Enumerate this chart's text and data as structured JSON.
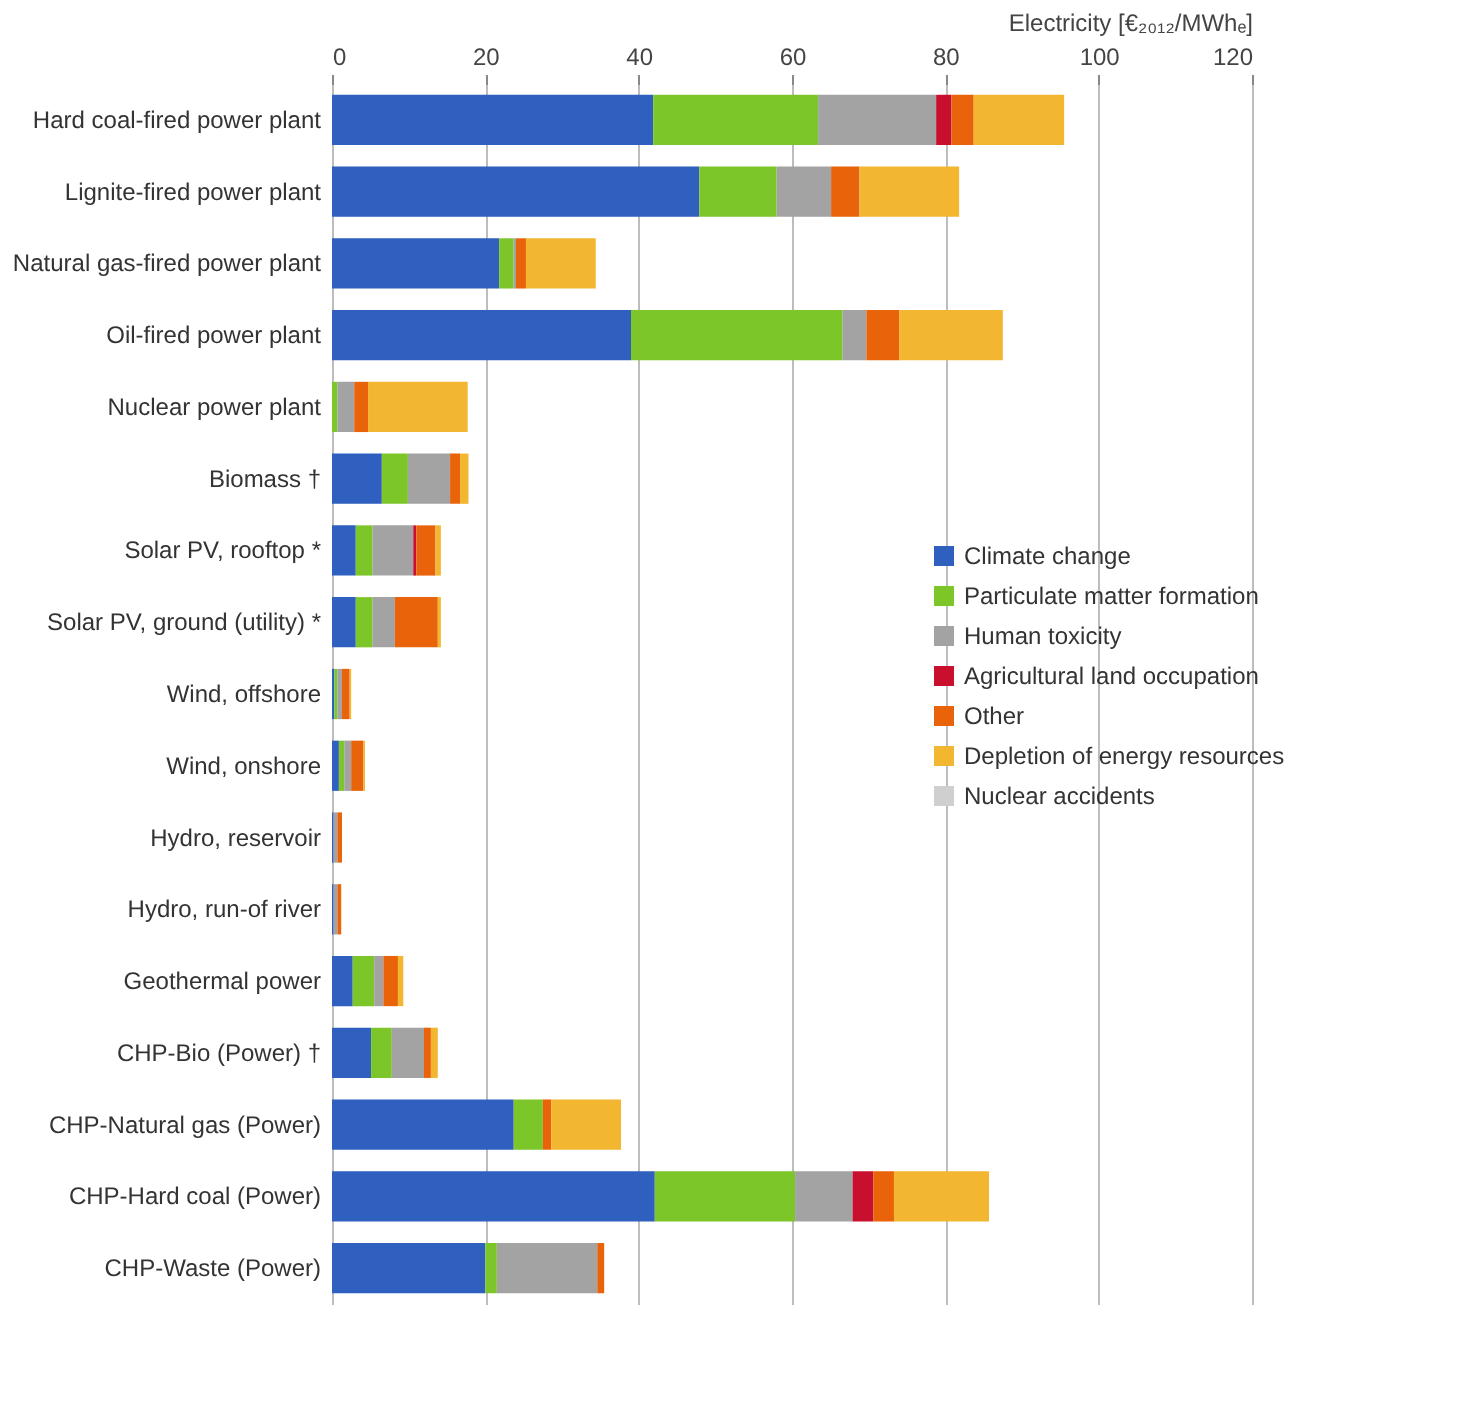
{
  "chart_data": {
    "type": "bar",
    "orientation": "horizontal",
    "stacked": true,
    "xlabel": "Electricity [€₂₀₁₂/MWhₑ]",
    "categories": [
      "Hard coal-fired power plant",
      "Lignite-fired power plant",
      "Natural gas-fired power plant",
      "Oil-fired power plant",
      "Nuclear power plant",
      "Biomass †",
      "Solar PV, rooftop *",
      "Solar PV, ground (utility) *",
      "Wind, offshore",
      "Wind, onshore",
      "Hydro, reservoir",
      "Hydro, run-of river",
      "Geothermal power",
      "CHP-Bio (Power) †",
      "CHP-Natural gas (Power)",
      "CHP-Hard coal (Power)",
      "CHP-Waste (Power)"
    ],
    "series": [
      {
        "name": "Climate change",
        "color": "#2f5fbf",
        "values": [
          41.9,
          47.9,
          21.8,
          39.0,
          null,
          6.5,
          3.1,
          3.1,
          0.3,
          0.9,
          0.2,
          0.2,
          2.7,
          5.1,
          23.7,
          42.1,
          20.0
        ]
      },
      {
        "name": "Particulate matter formation",
        "color": "#7dc62a",
        "values": [
          21.5,
          10.1,
          1.9,
          27.6,
          0.7,
          3.4,
          2.2,
          2.2,
          0.4,
          0.7,
          null,
          null,
          2.8,
          2.7,
          3.8,
          18.3,
          1.5
        ]
      },
      {
        "name": "Human toxicity",
        "color": "#a3a3a3",
        "values": [
          15.4,
          7.1,
          0.3,
          3.1,
          2.2,
          5.5,
          5.3,
          2.9,
          0.6,
          0.9,
          0.5,
          0.5,
          1.2,
          4.2,
          null,
          7.5,
          13.1
        ]
      },
      {
        "name": "Agricultural land occupation",
        "color": "#c8102e",
        "values": [
          2.0,
          null,
          null,
          null,
          null,
          null,
          0.4,
          null,
          null,
          null,
          null,
          null,
          null,
          null,
          null,
          2.7,
          null
        ]
      },
      {
        "name": "Other",
        "color": "#e8630a",
        "values": [
          2.9,
          3.7,
          1.3,
          4.3,
          1.8,
          1.3,
          2.5,
          5.6,
          1.0,
          1.6,
          0.6,
          0.5,
          1.9,
          0.9,
          1.1,
          2.7,
          0.9
        ]
      },
      {
        "name": "Depletion of energy resources",
        "color": "#f2b631",
        "values": [
          11.8,
          13.0,
          9.1,
          13.5,
          13.0,
          1.1,
          0.7,
          0.4,
          0.2,
          0.2,
          null,
          null,
          0.7,
          0.9,
          9.1,
          12.4,
          null
        ]
      },
      {
        "name": "Nuclear accidents",
        "color": "#cfcfcf",
        "values": [
          null,
          null,
          null,
          null,
          null,
          null,
          null,
          null,
          null,
          null,
          null,
          null,
          null,
          null,
          null,
          null,
          null
        ]
      }
    ],
    "xlim": [
      0,
      120
    ],
    "xticks": [
      0,
      20,
      40,
      60,
      80,
      100,
      120
    ],
    "grid": "x",
    "legend": "right"
  }
}
